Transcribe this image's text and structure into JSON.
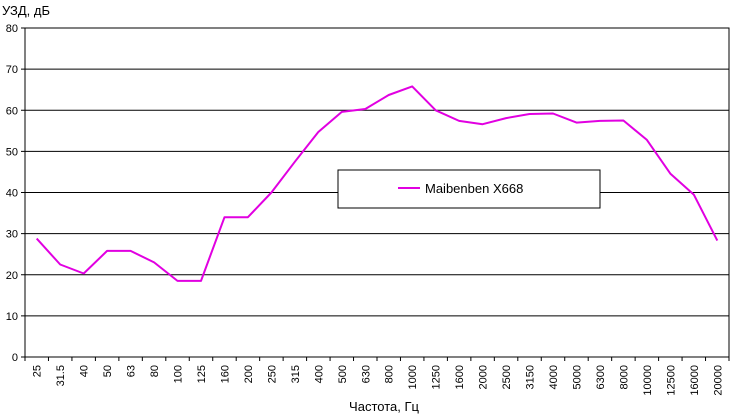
{
  "chart_data": {
    "type": "line",
    "ylabel": "УЗД, дБ",
    "xlabel": "Частота, Гц",
    "ylim": [
      0,
      80
    ],
    "yticks": [
      0,
      10,
      20,
      30,
      40,
      50,
      60,
      70,
      80
    ],
    "categories": [
      "25",
      "31.5",
      "40",
      "50",
      "63",
      "80",
      "100",
      "125",
      "160",
      "200",
      "250",
      "315",
      "400",
      "500",
      "630",
      "800",
      "1000",
      "1250",
      "1600",
      "2000",
      "2500",
      "3150",
      "4000",
      "5000",
      "6300",
      "8000",
      "10000",
      "12500",
      "16000",
      "20000"
    ],
    "series": [
      {
        "name": "Maibenben X668",
        "color": "#e100e1",
        "values": [
          28.8,
          22.5,
          20.3,
          25.8,
          25.8,
          23.0,
          18.5,
          18.5,
          34.0,
          34.0,
          40.0,
          47.5,
          54.7,
          59.6,
          60.3,
          63.7,
          65.8,
          60.0,
          57.4,
          56.6,
          58.1,
          59.1,
          59.2,
          57.0,
          57.4,
          57.5,
          52.8,
          44.6,
          39.5,
          28.3
        ]
      }
    ],
    "grid": "horizontal",
    "legend": "center-right"
  }
}
